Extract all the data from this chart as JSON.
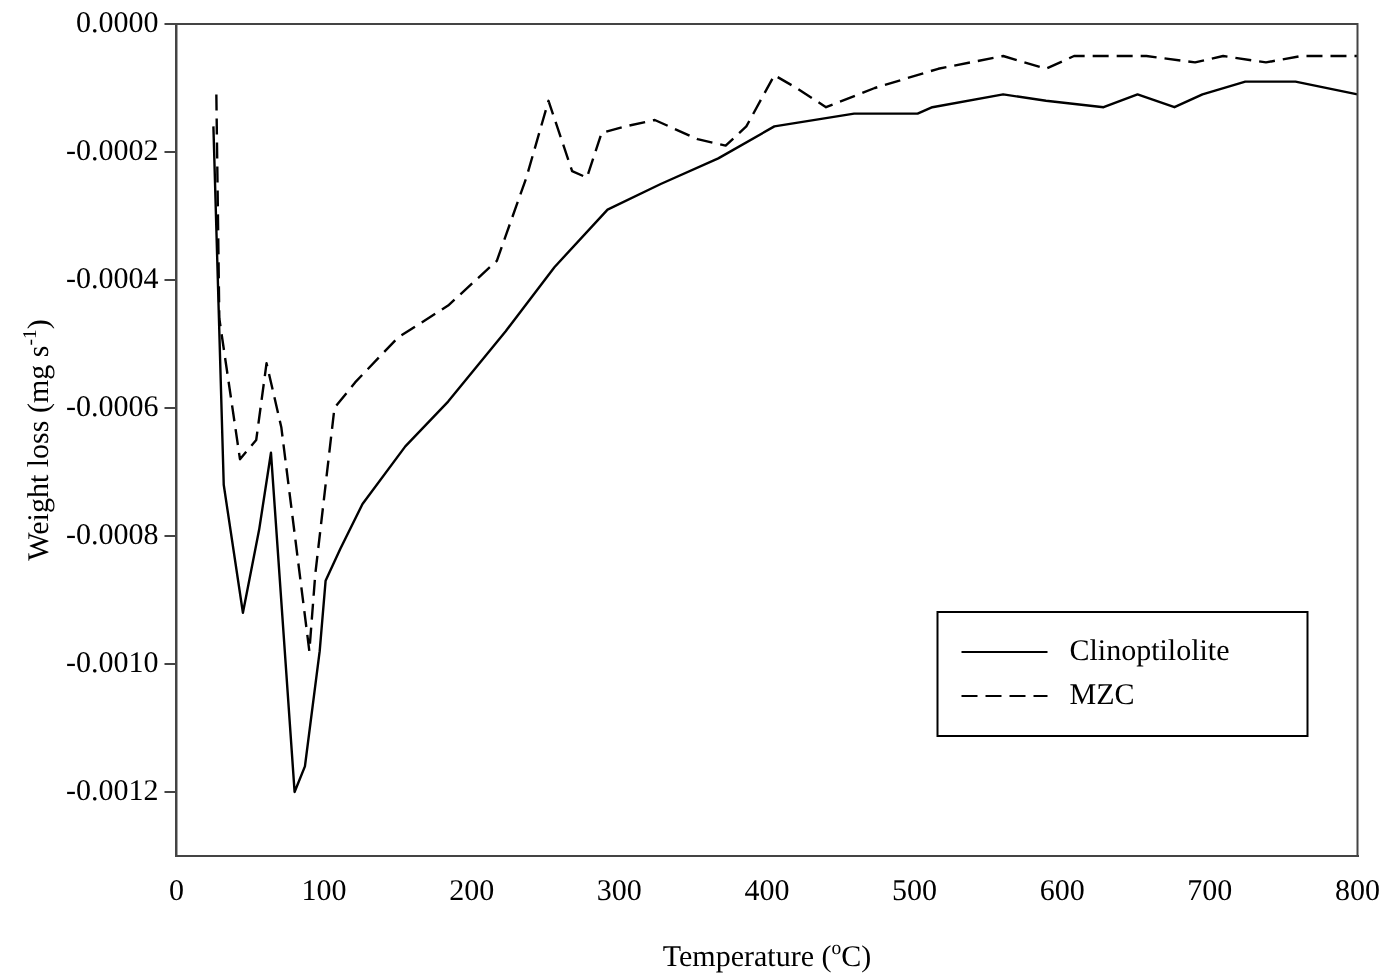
{
  "chart_data": {
    "type": "line",
    "xlabel": "Temperature ($^{o}$C)",
    "ylabel": "Weight loss (mg s$^{-1}$)",
    "xlim": [
      0,
      800
    ],
    "xticks": [
      0,
      100,
      200,
      300,
      400,
      500,
      600,
      700,
      800
    ],
    "ylim": [
      -0.0013,
      0
    ],
    "yticks": [
      {
        "value": -0.0012,
        "label": "-0.0012"
      },
      {
        "value": -0.001,
        "label": "-0.0010"
      },
      {
        "value": -0.0008,
        "label": "-0.0008"
      },
      {
        "value": -0.0006,
        "label": "-0.0006"
      },
      {
        "value": -0.0004,
        "label": "-0.0004"
      },
      {
        "value": -0.0002,
        "label": "-0.0002"
      },
      {
        "value": 0,
        "label": "0.0000"
      }
    ],
    "grid": false,
    "legend": "bottom right",
    "marker": "none",
    "series": [
      {
        "name": "Clinoptilolite",
        "color": "#000000",
        "line_style": "solid",
        "x": [
          25,
          32,
          45,
          56,
          64,
          80,
          87,
          97,
          101,
          111,
          126,
          155,
          184,
          223,
          256,
          292,
          328,
          367,
          405,
          459,
          502,
          512,
          560,
          589,
          628,
          651,
          676,
          695,
          724,
          758,
          800
        ],
        "values": [
          -0.00016,
          -0.00072,
          -0.00092,
          -0.00079,
          -0.00067,
          -0.0012,
          -0.00116,
          -0.00098,
          -0.00087,
          -0.00082,
          -0.00075,
          -0.00066,
          -0.00059,
          -0.00048,
          -0.00038,
          -0.00029,
          -0.00025,
          -0.00021,
          -0.00016,
          -0.00014,
          -0.00014,
          -0.00013,
          -0.00011,
          -0.00012,
          -0.00013,
          -0.00011,
          -0.00013,
          -0.00011,
          -9e-05,
          -9e-05,
          -0.00011
        ]
      },
      {
        "name": "MZC",
        "color": "#000000",
        "line_style": "dashed",
        "x": [
          27,
          29,
          43,
          54,
          61,
          71,
          90,
          94,
          107,
          121,
          150,
          184,
          217,
          237,
          252,
          268,
          278,
          288,
          304,
          324,
          353,
          372,
          386,
          405,
          420,
          440,
          473,
          516,
          560,
          589,
          608,
          657,
          690,
          709,
          738,
          762,
          800
        ],
        "values": [
          -0.00011,
          -0.00046,
          -0.00068,
          -0.00065,
          -0.00053,
          -0.00063,
          -0.00098,
          -0.00086,
          -0.0006,
          -0.00056,
          -0.00049,
          -0.00044,
          -0.00037,
          -0.00024,
          -0.00012,
          -0.00023,
          -0.00024,
          -0.00017,
          -0.00016,
          -0.00015,
          -0.00018,
          -0.00019,
          -0.00016,
          -8e-05,
          -0.0001,
          -0.00013,
          -0.0001,
          -7e-05,
          -5e-05,
          -7e-05,
          -5e-05,
          -5e-05,
          -6e-05,
          -5e-05,
          -6e-05,
          -5e-05,
          -5e-05
        ]
      }
    ]
  }
}
